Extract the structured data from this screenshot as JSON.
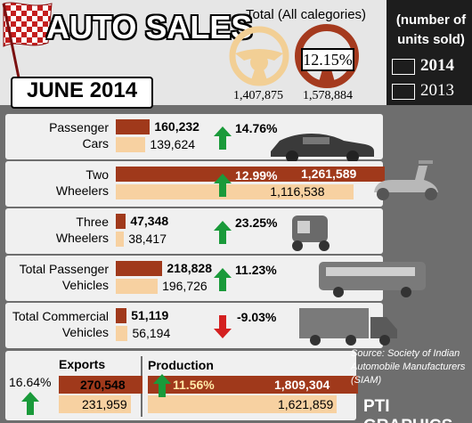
{
  "header": {
    "title": "AUTO SALES",
    "date": "JUNE 2014",
    "total_heading": "Total (All calegories)",
    "total_2013": "1,407,875",
    "total_2014": "1,578,884",
    "total_growth": "12.15%"
  },
  "legend": {
    "note": "(number of units sold)",
    "items": [
      {
        "label": "2014",
        "color": "#a0391b"
      },
      {
        "label": "2013",
        "color": "#f7d1a1"
      }
    ]
  },
  "chart_data": {
    "type": "bar",
    "categories": [
      "Passenger Cars",
      "Two Wheelers",
      "Three Wheelers",
      "Total Passenger Vehicles",
      "Total Commercial Vehicles",
      "Exports",
      "Production"
    ],
    "series": [
      {
        "name": "2014",
        "values": [
          160232,
          1261589,
          47348,
          218828,
          51119,
          270548,
          1809304
        ]
      },
      {
        "name": "2013",
        "values": [
          139624,
          1116538,
          38417,
          196726,
          56194,
          231959,
          1621859
        ]
      }
    ],
    "colors": {
      "2014": "#a0391b",
      "2013": "#f7d1a1",
      "up": "#1a9a3a",
      "down": "#d42020"
    },
    "rows": [
      {
        "label": "Passenger Cars",
        "lines": [
          "Passenger",
          "Cars"
        ],
        "v2014": "160,232",
        "v2013": "139,624",
        "change": "14.76%",
        "dir": "up",
        "icon": "car-icon"
      },
      {
        "label": "Two Wheelers",
        "lines": [
          "Two",
          "Wheelers"
        ],
        "v2014": "1,261,589",
        "v2013": "1,116,538",
        "change": "12.99%",
        "dir": "up",
        "icon": "scooter-icon"
      },
      {
        "label": "Three Wheelers",
        "lines": [
          "Three",
          "Wheelers"
        ],
        "v2014": "47,348",
        "v2013": "38,417",
        "change": "23.25%",
        "dir": "up",
        "icon": "auto-rickshaw-icon"
      },
      {
        "label": "Total Passenger Vehicles",
        "lines": [
          "Total Passenger",
          "Vehicles"
        ],
        "v2014": "218,828",
        "v2013": "196,726",
        "change": "11.23%",
        "dir": "up",
        "icon": "bus-icon"
      },
      {
        "label": "Total Commercial Vehicles",
        "lines": [
          "Total Commercial",
          "Vehicles"
        ],
        "v2014": "51,119",
        "v2013": "56,194",
        "change": "-9.03%",
        "dir": "down",
        "icon": "truck-icon"
      }
    ],
    "exports": {
      "label": "Exports",
      "v2014": "270,548",
      "v2013": "231,959",
      "change": "16.64%",
      "dir": "up"
    },
    "production": {
      "label": "Production",
      "v2014": "1,809,304",
      "v2013": "1,621,859",
      "change": "11.56%",
      "dir": "up"
    }
  },
  "footer": {
    "source": "Source: Society of Indian Automobile Manufacturers (SIAM)",
    "credit": "PTI GRAPHICS"
  }
}
